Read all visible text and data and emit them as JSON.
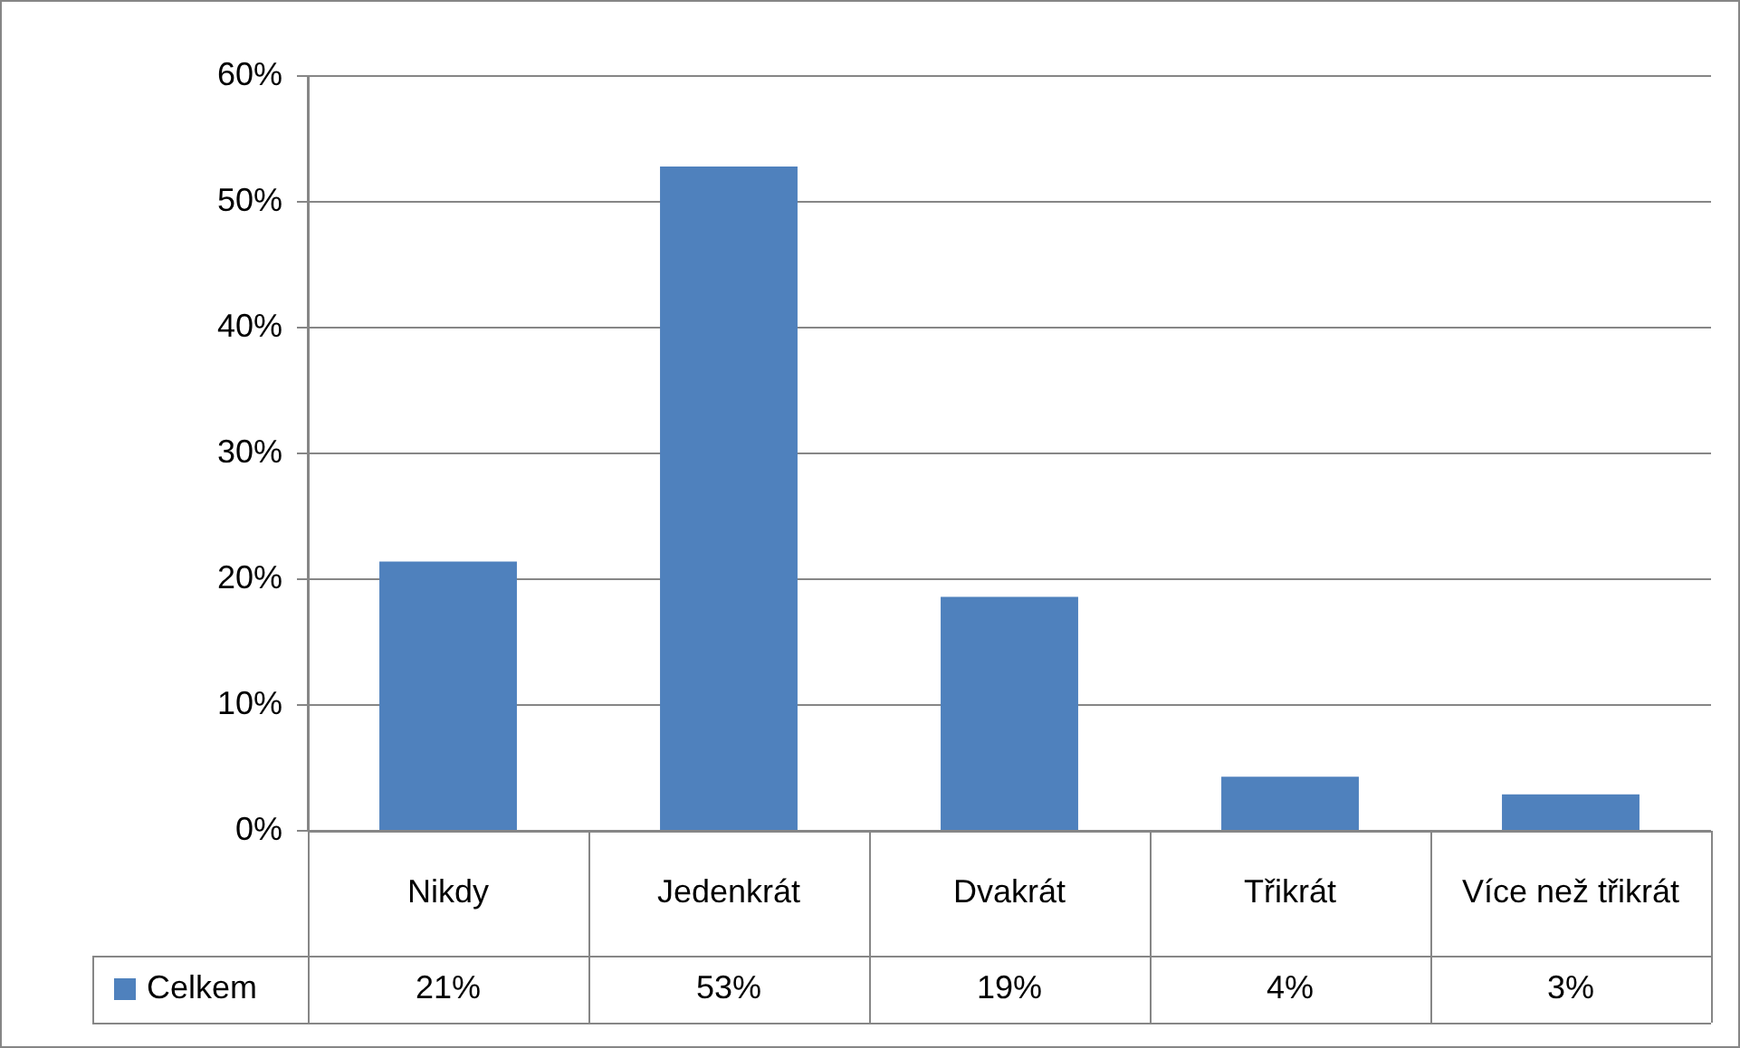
{
  "chart_data": {
    "type": "bar",
    "categories": [
      "Nikdy",
      "Jedenkrát",
      "Dvakrát",
      "Třikrát",
      "Více než třikrát"
    ],
    "series": [
      {
        "name": "Celkem",
        "color": "#4f81bd",
        "values": [
          21.4,
          52.8,
          18.6,
          4.3,
          2.9
        ],
        "value_labels": [
          "21%",
          "53%",
          "19%",
          "4%",
          "3%"
        ]
      }
    ],
    "ylim": [
      0,
      60
    ],
    "yticks": [
      {
        "value": 0,
        "label": "0%"
      },
      {
        "value": 10,
        "label": "10%"
      },
      {
        "value": 20,
        "label": "20%"
      },
      {
        "value": 30,
        "label": "30%"
      },
      {
        "value": 40,
        "label": "40%"
      },
      {
        "value": 50,
        "label": "50%"
      },
      {
        "value": 60,
        "label": "60%"
      }
    ],
    "grid": "y",
    "legend": "bottom"
  }
}
